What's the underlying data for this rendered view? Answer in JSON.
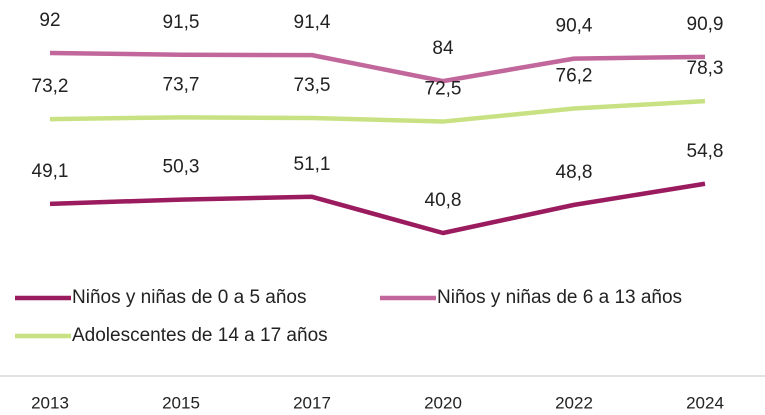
{
  "chart_data": {
    "type": "line",
    "categories": [
      "2013",
      "2015",
      "2017",
      "2020",
      "2022",
      "2024"
    ],
    "series": [
      {
        "name": "Niños y niñas de 0 a 5 años",
        "color": "#9b1b5f",
        "values": [
          49.1,
          50.3,
          51.1,
          40.8,
          48.8,
          54.8
        ],
        "value_labels": [
          "49,1",
          "50,3",
          "51,1",
          "40,8",
          "48,8",
          "54,8"
        ]
      },
      {
        "name": "Niños y niñas de 6 a 13 años",
        "color": "#c2679b",
        "values": [
          92,
          91.5,
          91.4,
          84,
          90.4,
          90.9
        ],
        "value_labels": [
          "92",
          "91,5",
          "91,4",
          "84",
          "90,4",
          "90,9"
        ]
      },
      {
        "name": "Adolescentes de 14 a 17 años",
        "color": "#c8e283",
        "values": [
          73.2,
          73.7,
          73.5,
          72.5,
          76.2,
          78.3
        ],
        "value_labels": [
          "73,2",
          "73,7",
          "73,5",
          "72,5",
          "76,2",
          "78,3"
        ]
      }
    ]
  }
}
